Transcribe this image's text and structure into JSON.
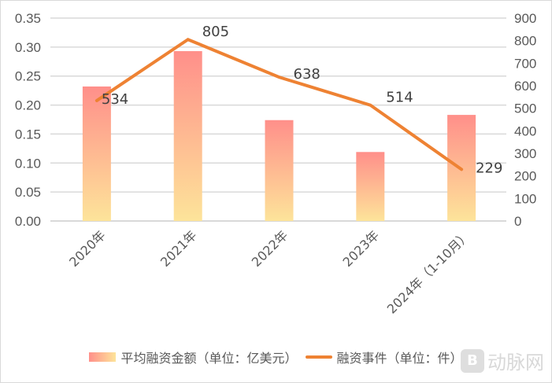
{
  "chart_data": {
    "type": "bar+line",
    "title": "",
    "categories": [
      "2020年",
      "2021年",
      "2022年",
      "2023年",
      "2024年（1-10月）"
    ],
    "series": [
      {
        "name": "平均融资金额（单位：亿美元）",
        "type": "bar",
        "axis": "left",
        "values": [
          0.232,
          0.293,
          0.174,
          0.119,
          0.183
        ]
      },
      {
        "name": "融资事件（单位：件）",
        "type": "line",
        "axis": "right",
        "values": [
          534,
          805,
          638,
          514,
          229
        ],
        "data_labels": [
          "534",
          "805",
          "638",
          "514",
          "229"
        ]
      }
    ],
    "left_axis": {
      "ylim": [
        0,
        0.35
      ],
      "ticks": [
        "0.00",
        "0.05",
        "0.10",
        "0.15",
        "0.20",
        "0.25",
        "0.30",
        "0.35"
      ]
    },
    "right_axis": {
      "ylim": [
        0,
        900
      ],
      "ticks": [
        "0",
        "100",
        "200",
        "300",
        "400",
        "500",
        "600",
        "700",
        "800",
        "900"
      ]
    },
    "grid": true,
    "legend_position": "bottom",
    "colors": {
      "bar_top": "#ff8f8a",
      "bar_bottom": "#fde49a",
      "line": "#ee8233",
      "grid": "#d9d9d9"
    }
  },
  "legend": {
    "bar_label": "平均融资金额（单位：亿美元）",
    "line_label": "融资事件（单位：件）"
  },
  "watermark": {
    "logo": "B",
    "text": "动脉网"
  }
}
